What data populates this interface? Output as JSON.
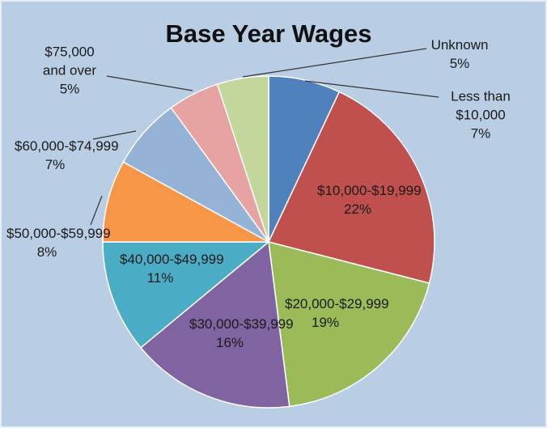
{
  "chart_data": {
    "type": "pie",
    "title": "Base Year Wages",
    "categories": [
      "Less than $10,000",
      "$10,000-$19,999",
      "$20,000-$29,999",
      "$30,000-$39,999",
      "$40,000-$49,999",
      "$50,000-$59,999",
      "$60,000-$74,999",
      "$75,000 and over",
      "Unknown"
    ],
    "values": [
      7,
      22,
      19,
      16,
      11,
      8,
      7,
      5,
      5
    ],
    "value_labels": [
      "7%",
      "22%",
      "19%",
      "16%",
      "11%",
      "8%",
      "7%",
      "5%",
      "5%"
    ],
    "colors": [
      "#4f81bd",
      "#c0504d",
      "#9bbb59",
      "#8064a2",
      "#4bacc6",
      "#f79646",
      "#95b3d7",
      "#e6a3a1",
      "#c3d69b"
    ]
  }
}
